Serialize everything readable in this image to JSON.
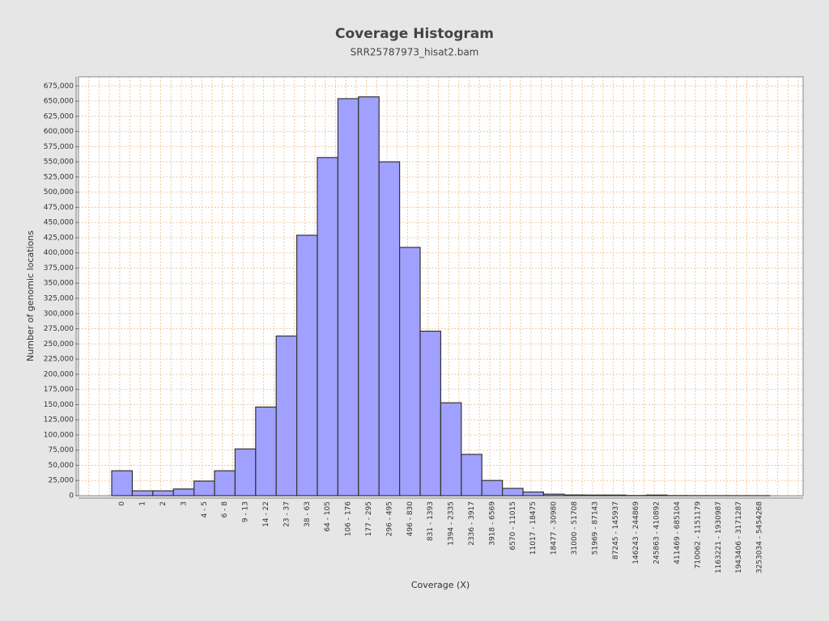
{
  "chart_data": {
    "type": "bar",
    "title": "Coverage Histogram",
    "subtitle": "SRR25787973_hisat2.bam",
    "x_label": "Coverage (X)",
    "y_label": "Number of genomic locations",
    "categories": [
      "0",
      "1",
      "2",
      "3",
      "4 - 5",
      "6 - 8",
      "9 - 13",
      "14 - 22",
      "23 - 37",
      "38 - 63",
      "64 - 105",
      "106 - 176",
      "177 - 295",
      "296 - 495",
      "496 - 830",
      "831 - 1393",
      "1394 - 2335",
      "2336 - 3917",
      "3918 - 6569",
      "6570 - 11015",
      "11017 - 18475",
      "18477 - 30980",
      "31000 - 51708",
      "51969 - 87143",
      "87245 - 145937",
      "146243 - 244869",
      "245863 - 410892",
      "411469 - 685104",
      "710062 - 1151179",
      "1163221 - 1930987",
      "1943406 - 3171287",
      "3253034 - 5454268"
    ],
    "values": [
      41000,
      8000,
      8000,
      11000,
      24000,
      41000,
      77000,
      146000,
      263000,
      429000,
      557000,
      654000,
      657000,
      550000,
      409000,
      271000,
      153000,
      68000,
      25000,
      12000,
      6000,
      2500,
      1200,
      1000,
      1000,
      300,
      1000,
      200,
      100,
      50,
      20,
      10
    ],
    "color": "#a0a0ff",
    "edge_color": "#333333",
    "ylim": [
      0,
      690000
    ],
    "yticks": [
      0,
      {
        "value": 25000,
        "label": "25,000"
      },
      {
        "value": 50000,
        "label": "50,000"
      },
      {
        "value": 75000,
        "label": "75,000"
      },
      {
        "value": 100000,
        "label": "100,000"
      },
      {
        "value": 125000,
        "label": "125,000"
      },
      {
        "value": 150000,
        "label": "150,000"
      },
      {
        "value": 175000,
        "label": "175,000"
      },
      {
        "value": 200000,
        "label": "200,000"
      },
      {
        "value": 225000,
        "label": "225,000"
      },
      {
        "value": 250000,
        "label": "250,000"
      },
      {
        "value": 275000,
        "label": "275,000"
      },
      {
        "value": 300000,
        "label": "300,000"
      },
      {
        "value": 325000,
        "label": "325,000"
      },
      {
        "value": 350000,
        "label": "350,000"
      },
      {
        "value": 375000,
        "label": "375,000"
      },
      {
        "value": 400000,
        "label": "400,000"
      },
      {
        "value": 425000,
        "label": "425,000"
      },
      {
        "value": 450000,
        "label": "450,000"
      },
      {
        "value": 475000,
        "label": "475,000"
      },
      {
        "value": 500000,
        "label": "500,000"
      },
      {
        "value": 525000,
        "label": "525,000"
      },
      {
        "value": 550000,
        "label": "550,000"
      },
      {
        "value": 575000,
        "label": "575,000"
      },
      {
        "value": 600000,
        "label": "600,000"
      },
      {
        "value": 625000,
        "label": "625,000"
      },
      {
        "value": 650000,
        "label": "650,000"
      },
      {
        "value": 675000,
        "label": "675,000"
      }
    ],
    "grid": true
  }
}
